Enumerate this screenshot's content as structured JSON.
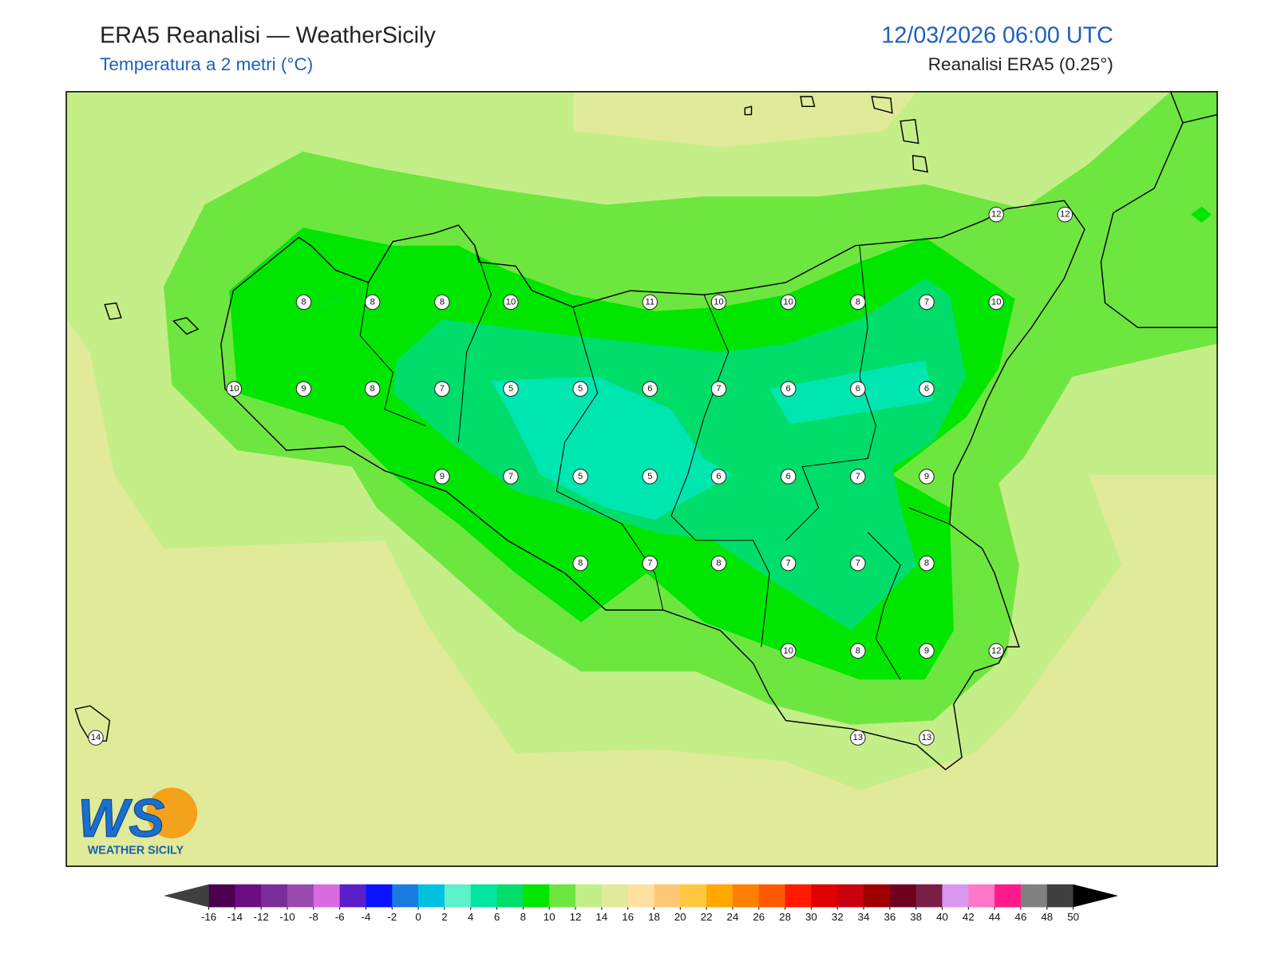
{
  "header": {
    "title": "ERA5 Reanalisi — WeatherSicily",
    "subtitle": "Temperatura a 2 metri (°C)",
    "datetime": "12/03/2026 06:00 UTC",
    "source": "Reanalisi ERA5 (0.25°)"
  },
  "stations": [
    12,
    12,
    8,
    8,
    8,
    10,
    11,
    10,
    10,
    8,
    7,
    10,
    10,
    9,
    8,
    7,
    5,
    5,
    6,
    7,
    6,
    6,
    6,
    9,
    7,
    5,
    5,
    6,
    6,
    7,
    9,
    8,
    7,
    8,
    7,
    7,
    8,
    10,
    8,
    9,
    12,
    14,
    13,
    13
  ],
  "colorbar": {
    "ticks": [
      -16,
      -14,
      -12,
      -10,
      -8,
      -6,
      -4,
      -2,
      0,
      2,
      4,
      6,
      8,
      10,
      12,
      14,
      16,
      18,
      20,
      22,
      24,
      26,
      28,
      30,
      32,
      34,
      36,
      38,
      40,
      42,
      44,
      46,
      48,
      50
    ],
    "colors": [
      "#4a004f",
      "#6a0d83",
      "#7b2d9a",
      "#9a4bb0",
      "#d96be0",
      "#5a1fc8",
      "#0a14ff",
      "#1a7be0",
      "#00c2e0",
      "#5ef0c8",
      "#00e6a0",
      "#00dd6a",
      "#00e600",
      "#6ee640",
      "#c4ee88",
      "#e0ea98",
      "#ffe0a0",
      "#ffc878",
      "#ffc840",
      "#ffa800",
      "#ff8000",
      "#ff5a00",
      "#ff1a00",
      "#e00000",
      "#c80010",
      "#a00000",
      "#6e0020",
      "#7a1e48",
      "#d897f0",
      "#ff78c8",
      "#ff1a8c",
      "#808080",
      "#404040"
    ],
    "under_color": "#404040",
    "over_color": "#000000"
  },
  "logo": {
    "mark": "WS",
    "name": "WEATHER SICILY"
  }
}
